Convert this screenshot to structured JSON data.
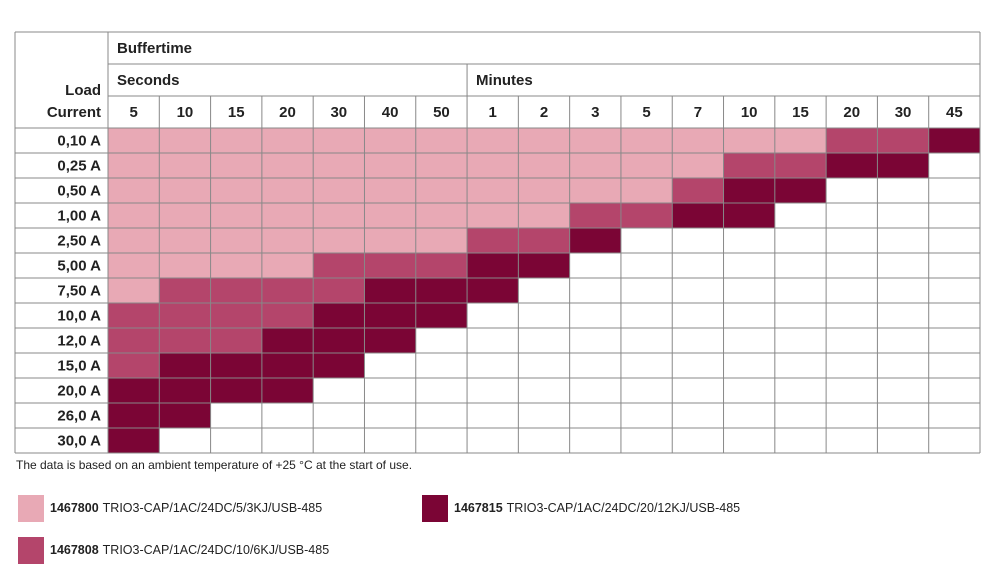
{
  "table": {
    "title": "Buffertime",
    "row_header": [
      "Load",
      "Current"
    ],
    "groups": [
      {
        "label": "Seconds",
        "columns": [
          "5",
          "10",
          "15",
          "20",
          "30",
          "40",
          "50"
        ]
      },
      {
        "label": "Minutes",
        "columns": [
          "1",
          "2",
          "3",
          "5",
          "7",
          "10",
          "15",
          "20",
          "30",
          "45"
        ]
      }
    ],
    "rows": [
      {
        "label": "0,10 A",
        "cells": [
          0,
          0,
          0,
          0,
          0,
          0,
          0,
          0,
          0,
          0,
          0,
          0,
          0,
          0,
          1,
          1,
          2
        ]
      },
      {
        "label": "0,25 A",
        "cells": [
          0,
          0,
          0,
          0,
          0,
          0,
          0,
          0,
          0,
          0,
          0,
          0,
          1,
          1,
          2,
          2,
          null
        ]
      },
      {
        "label": "0,50 A",
        "cells": [
          0,
          0,
          0,
          0,
          0,
          0,
          0,
          0,
          0,
          0,
          0,
          1,
          2,
          2,
          null,
          null,
          null
        ]
      },
      {
        "label": "1,00 A",
        "cells": [
          0,
          0,
          0,
          0,
          0,
          0,
          0,
          0,
          0,
          1,
          1,
          2,
          2,
          null,
          null,
          null,
          null
        ]
      },
      {
        "label": "2,50 A",
        "cells": [
          0,
          0,
          0,
          0,
          0,
          0,
          0,
          1,
          1,
          2,
          null,
          null,
          null,
          null,
          null,
          null,
          null
        ]
      },
      {
        "label": "5,00 A",
        "cells": [
          0,
          0,
          0,
          0,
          1,
          1,
          1,
          2,
          2,
          null,
          null,
          null,
          null,
          null,
          null,
          null,
          null
        ]
      },
      {
        "label": "7,50 A",
        "cells": [
          0,
          1,
          1,
          1,
          1,
          2,
          2,
          2,
          null,
          null,
          null,
          null,
          null,
          null,
          null,
          null,
          null
        ]
      },
      {
        "label": "10,0 A",
        "cells": [
          1,
          1,
          1,
          1,
          2,
          2,
          2,
          null,
          null,
          null,
          null,
          null,
          null,
          null,
          null,
          null,
          null
        ]
      },
      {
        "label": "12,0 A",
        "cells": [
          1,
          1,
          1,
          2,
          2,
          2,
          null,
          null,
          null,
          null,
          null,
          null,
          null,
          null,
          null,
          null,
          null
        ]
      },
      {
        "label": "15,0 A",
        "cells": [
          1,
          2,
          2,
          2,
          2,
          null,
          null,
          null,
          null,
          null,
          null,
          null,
          null,
          null,
          null,
          null,
          null
        ]
      },
      {
        "label": "20,0 A",
        "cells": [
          2,
          2,
          2,
          2,
          null,
          null,
          null,
          null,
          null,
          null,
          null,
          null,
          null,
          null,
          null,
          null,
          null
        ]
      },
      {
        "label": "26,0 A",
        "cells": [
          2,
          2,
          null,
          null,
          null,
          null,
          null,
          null,
          null,
          null,
          null,
          null,
          null,
          null,
          null,
          null,
          null
        ]
      },
      {
        "label": "30,0 A",
        "cells": [
          2,
          null,
          null,
          null,
          null,
          null,
          null,
          null,
          null,
          null,
          null,
          null,
          null,
          null,
          null,
          null,
          null
        ]
      }
    ]
  },
  "note": "The data is based on an ambient temperature of +25 °C at the start of use.",
  "legend": [
    {
      "code": "1467800",
      "description": "TRIO3-CAP/1AC/24DC/5/3KJ/USB-485",
      "color": "#e8a9b5"
    },
    {
      "code": "1467808",
      "description": "TRIO3-CAP/1AC/24DC/10/6KJ/USB-485",
      "color": "#b4456b"
    },
    {
      "code": "1467815",
      "description": "TRIO3-CAP/1AC/24DC/20/12KJ/USB-485",
      "color": "#7b0535"
    }
  ]
}
